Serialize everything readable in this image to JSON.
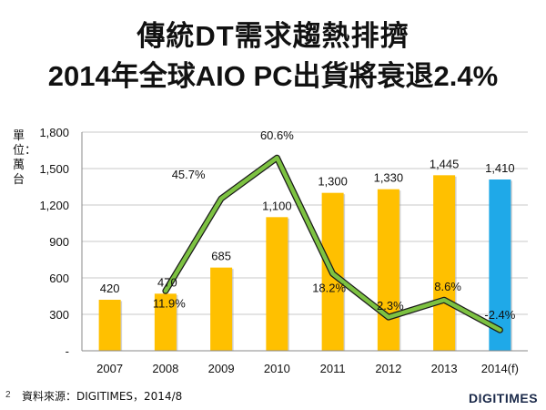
{
  "title_line1": "傳統DT需求趨熱排擠",
  "title_line2": "2014年全球AIO PC出貨將衰退2.4%",
  "unit_label": "單位：萬台",
  "page_number": "2",
  "source": "資料來源：DIGITIMES，2014/8",
  "brand": "DIGITIMES",
  "colors": {
    "bar": "#FFC000",
    "bar_highlight": "#1FA9E8",
    "line": "#7DC242",
    "line_outline": "#1a1a1a",
    "grid": "#c8c8c8"
  },
  "chart_data": {
    "type": "bar+line",
    "categories": [
      "2007",
      "2008",
      "2009",
      "2010",
      "2011",
      "2012",
      "2013",
      "2014(f)"
    ],
    "series": [
      {
        "name": "Shipments",
        "type": "bar",
        "values": [
          420,
          470,
          685,
          1100,
          1300,
          1330,
          1445,
          1410
        ],
        "labels": [
          "420",
          "470",
          "685",
          "1,100",
          "1,300",
          "1,330",
          "1,445",
          "1,410"
        ],
        "highlight_index": 7
      },
      {
        "name": "Growth",
        "type": "line",
        "values": [
          null,
          11.9,
          45.7,
          60.6,
          18.2,
          2.3,
          8.6,
          -2.4
        ],
        "labels": [
          "",
          "11.9%",
          "45.7%",
          "60.6%",
          "18.2%",
          "2.3%",
          "8.6%",
          "-2.4%"
        ]
      }
    ],
    "y_axis": {
      "ylim": [
        0,
        1800
      ],
      "ticks": [
        0,
        300,
        600,
        900,
        1200,
        1500,
        1800
      ],
      "tick_labels": [
        "-",
        "300",
        "600",
        "900",
        "1,200",
        "1,500",
        "1,800"
      ]
    },
    "growth_axis_range": [
      -10,
      70
    ],
    "grid": true
  }
}
